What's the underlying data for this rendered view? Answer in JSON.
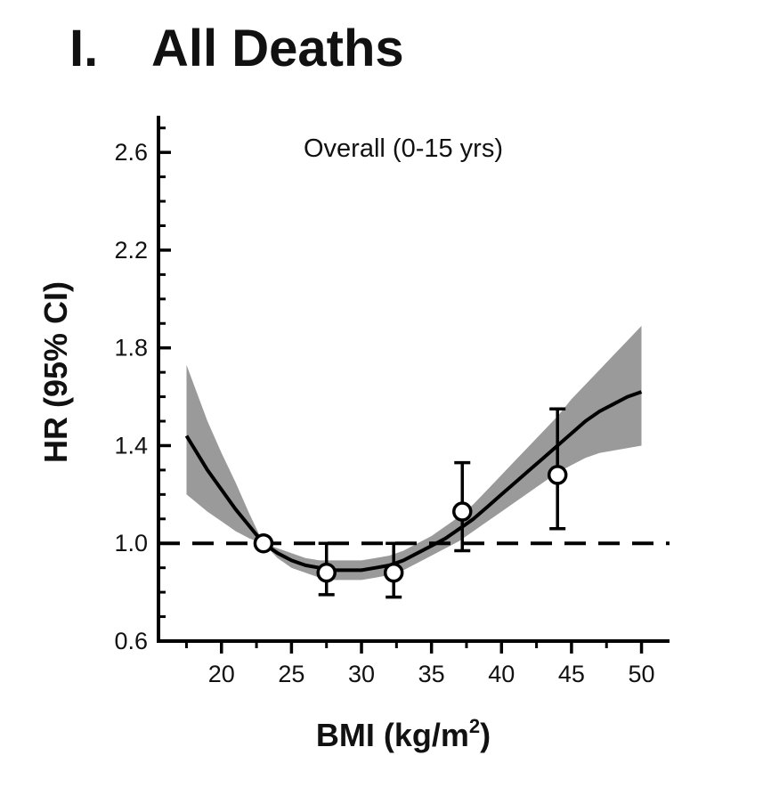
{
  "panel": {
    "label": "I.",
    "title": "All Deaths"
  },
  "chart_data": {
    "type": "line",
    "annotation": "Overall (0-15 yrs)",
    "xlabel": "BMI (kg/m",
    "xlabel_superscript": "2",
    "xlabel_suffix": ")",
    "ylabel": "HR (95% CI)",
    "xlim": [
      15.5,
      52
    ],
    "ylim": [
      0.6,
      2.75
    ],
    "x_ticks": [
      20,
      25,
      30,
      35,
      40,
      45,
      50
    ],
    "x_tick_labels": [
      "20",
      "25",
      "30",
      "35",
      "40",
      "45",
      "50"
    ],
    "y_ticks": [
      0.6,
      1.0,
      1.4,
      1.8,
      2.2,
      2.6
    ],
    "y_tick_labels": [
      "0.6",
      "1.0",
      "1.4",
      "1.8",
      "2.2",
      "2.6"
    ],
    "y_minor_step": 0.1,
    "reference_line": 1.0,
    "spline": {
      "x": [
        17.5,
        19,
        20,
        21,
        22,
        23,
        24,
        25,
        26,
        27,
        28,
        29,
        30,
        31,
        32,
        33,
        34,
        35,
        36,
        37,
        38,
        39,
        40,
        41,
        42,
        43,
        44,
        45,
        46,
        47,
        48,
        49,
        50
      ],
      "y": [
        1.44,
        1.3,
        1.22,
        1.14,
        1.07,
        1.0,
        0.96,
        0.93,
        0.91,
        0.9,
        0.89,
        0.89,
        0.89,
        0.9,
        0.91,
        0.93,
        0.96,
        0.99,
        1.02,
        1.06,
        1.1,
        1.15,
        1.2,
        1.25,
        1.3,
        1.35,
        1.4,
        1.45,
        1.5,
        1.54,
        1.57,
        1.6,
        1.62
      ],
      "lower": [
        1.2,
        1.13,
        1.09,
        1.05,
        1.02,
        1.0,
        0.94,
        0.9,
        0.88,
        0.86,
        0.85,
        0.85,
        0.85,
        0.86,
        0.87,
        0.89,
        0.92,
        0.95,
        0.98,
        1.01,
        1.05,
        1.09,
        1.13,
        1.17,
        1.21,
        1.25,
        1.29,
        1.32,
        1.35,
        1.37,
        1.38,
        1.39,
        1.4
      ],
      "upper": [
        1.73,
        1.5,
        1.37,
        1.25,
        1.12,
        1.0,
        0.98,
        0.96,
        0.94,
        0.93,
        0.93,
        0.93,
        0.93,
        0.94,
        0.95,
        0.97,
        1.0,
        1.03,
        1.07,
        1.11,
        1.16,
        1.22,
        1.28,
        1.34,
        1.4,
        1.46,
        1.52,
        1.59,
        1.65,
        1.71,
        1.77,
        1.83,
        1.89
      ]
    },
    "points": [
      {
        "x": 23.0,
        "y": 1.0,
        "lo": 1.0,
        "hi": 1.0
      },
      {
        "x": 27.5,
        "y": 0.88,
        "lo": 0.79,
        "hi": 1.0
      },
      {
        "x": 32.3,
        "y": 0.88,
        "lo": 0.78,
        "hi": 1.0
      },
      {
        "x": 37.2,
        "y": 1.13,
        "lo": 0.97,
        "hi": 1.33
      },
      {
        "x": 44.0,
        "y": 1.28,
        "lo": 1.06,
        "hi": 1.55
      }
    ],
    "colors": {
      "band": "#9a9a9a",
      "line": "#000000",
      "axis": "#000000",
      "marker_fill": "#ffffff"
    }
  }
}
